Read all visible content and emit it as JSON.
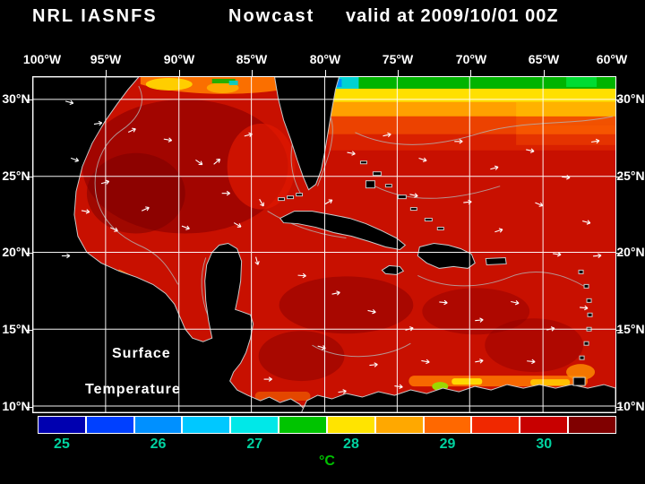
{
  "header": {
    "model": "NRL IASNFS",
    "product": "Nowcast",
    "valid": "valid at 2009/10/01 00Z"
  },
  "map": {
    "x_ticks": [
      "100°W",
      "95°W",
      "90°W",
      "85°W",
      "80°W",
      "75°W",
      "70°W",
      "65°W",
      "60°W"
    ],
    "y_ticks": [
      "30°N",
      "25°N",
      "20°N",
      "15°N",
      "10°N"
    ],
    "annotation_line1": "Surface",
    "annotation_line2": "Temperature",
    "land_color": "#000000",
    "grid_color": "#ffffff"
  },
  "colorbar": {
    "ticks": [
      "25",
      "26",
      "27",
      "28",
      "29",
      "30"
    ],
    "unit": "°C",
    "tick_color": "#00d2a0",
    "unit_color": "#00c000",
    "colors": [
      "#0000b0",
      "#0040ff",
      "#0090ff",
      "#00c8ff",
      "#00e8e8",
      "#00c400",
      "#ffe400",
      "#ffa800",
      "#ff6800",
      "#f02800",
      "#c80000",
      "#800000"
    ]
  },
  "chart_data": {
    "type": "heatmap",
    "title": "NRL IASNFS Nowcast valid at 2009/10/01 00Z",
    "variable": "Surface Temperature",
    "unit": "°C",
    "lon_range": [
      "100°W",
      "60°W"
    ],
    "lat_range": [
      "10°N",
      "30°N"
    ],
    "scale_values": [
      25,
      25.5,
      26,
      26.5,
      27,
      27.5,
      28,
      28.5,
      29,
      29.5,
      30,
      30.5
    ],
    "scale_colors": [
      "#0000b0",
      "#0040ff",
      "#0090ff",
      "#00c8ff",
      "#00e8e8",
      "#00c400",
      "#ffe400",
      "#ffa800",
      "#ff6800",
      "#f02800",
      "#c80000",
      "#800000"
    ],
    "legend_position": "bottom"
  }
}
